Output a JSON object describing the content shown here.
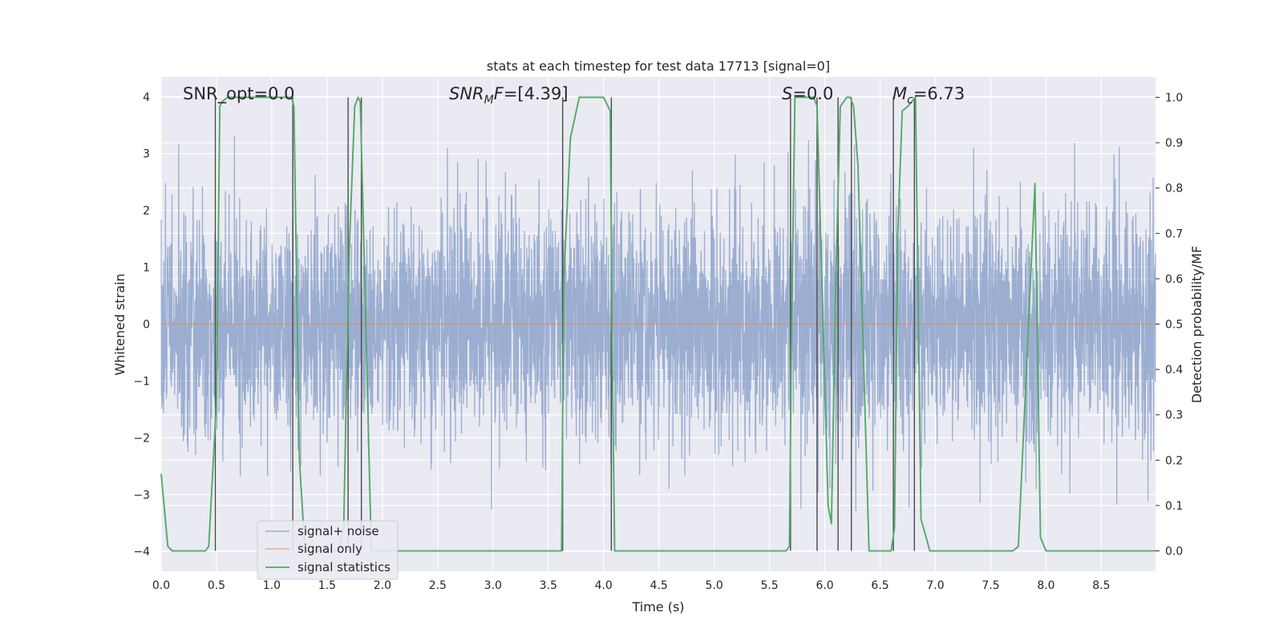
{
  "chart_data": {
    "type": "line",
    "title": "stats at each timestep for test data 17713 [signal=0]",
    "xlabel": "Time (s)",
    "ylabel": "Whitened strain",
    "y2label": "Detection probability/MF",
    "xlim": [
      0.0,
      8.99
    ],
    "ylim": [
      -4.35,
      4.35
    ],
    "y2lim": [
      -0.045,
      1.045
    ],
    "x_ticks": [
      "0.0",
      "0.5",
      "1.0",
      "1.5",
      "2.0",
      "2.5",
      "3.0",
      "3.5",
      "4.0",
      "4.5",
      "5.0",
      "5.5",
      "6.0",
      "6.5",
      "7.0",
      "7.5",
      "8.0",
      "8.5"
    ],
    "y_ticks": [
      "−4",
      "−3",
      "−2",
      "−1",
      "0",
      "1",
      "2",
      "3",
      "4"
    ],
    "y2_ticks": [
      "0.0",
      "0.1",
      "0.2",
      "0.3",
      "0.4",
      "0.5",
      "0.6",
      "0.7",
      "0.8",
      "0.9",
      "1.0"
    ],
    "grid": true,
    "legend_position": "lower-left",
    "legend": [
      "signal+ noise",
      "signal only",
      "signal statistics"
    ],
    "annotations": {
      "snr_opt": "SNR_opt=0.0",
      "snr_mf_base": "SNR",
      "snr_mf_sub": "M",
      "snr_mf_suffix": "F",
      "snr_mf_value": "=[4.39]",
      "s_symbol": "S",
      "s_value": "=0.0",
      "mc_base": "M",
      "mc_sub": "c",
      "mc_value": "=6.73"
    },
    "series": [
      {
        "name": "signal+ noise",
        "color": "#4c72b0",
        "kind": "noise",
        "axis": "left",
        "t_range": [
          0.0,
          8.99
        ],
        "sigma": 1.0,
        "envelope": 4.0
      },
      {
        "name": "signal only",
        "color": "#dd8452",
        "axis": "left",
        "x": [
          0.0,
          8.99
        ],
        "y": [
          0.0,
          0.0
        ]
      },
      {
        "name": "signal statistics",
        "color": "#55a868",
        "axis": "right",
        "x": [
          0.0,
          0.06,
          0.1,
          0.2,
          0.3,
          0.4,
          0.43,
          0.5,
          0.53,
          0.55,
          0.6,
          0.7,
          0.8,
          0.9,
          1.0,
          1.1,
          1.18,
          1.2,
          1.25,
          1.3,
          1.5,
          1.6,
          1.65,
          1.7,
          1.75,
          1.78,
          1.8,
          1.82,
          1.9,
          2.0,
          2.5,
          3.0,
          3.5,
          3.62,
          3.64,
          3.7,
          3.78,
          3.9,
          4.0,
          4.06,
          4.08,
          4.1,
          4.2,
          4.3,
          4.4,
          4.5,
          5.0,
          5.5,
          5.65,
          5.68,
          5.7,
          5.73,
          5.9,
          5.93,
          6.03,
          6.06,
          6.1,
          6.14,
          6.2,
          6.23,
          6.26,
          6.3,
          6.4,
          6.5,
          6.6,
          6.63,
          6.66,
          6.7,
          6.75,
          6.82,
          6.87,
          6.95,
          7.0,
          7.3,
          7.5,
          7.7,
          7.75,
          7.9,
          7.95,
          8.0,
          8.2,
          8.5,
          8.99
        ],
        "y": [
          0.17,
          0.01,
          0.0,
          0.0,
          0.0,
          0.0,
          0.01,
          0.33,
          0.98,
          0.99,
          1.0,
          1.0,
          1.0,
          1.0,
          1.0,
          1.0,
          1.0,
          0.98,
          0.2,
          0.0,
          0.0,
          0.0,
          0.05,
          0.66,
          0.98,
          1.0,
          0.99,
          0.8,
          0.0,
          0.0,
          0.0,
          0.0,
          0.0,
          0.0,
          0.6,
          0.91,
          1.0,
          1.0,
          1.0,
          0.97,
          0.4,
          0.0,
          0.0,
          0.0,
          0.0,
          0.0,
          0.0,
          0.0,
          0.0,
          0.01,
          0.5,
          1.0,
          1.0,
          0.98,
          0.1,
          0.06,
          0.6,
          0.98,
          1.0,
          1.0,
          0.98,
          0.85,
          0.0,
          0.0,
          0.0,
          0.05,
          0.7,
          0.97,
          0.98,
          1.0,
          0.07,
          0.0,
          0.0,
          0.0,
          0.0,
          0.0,
          0.01,
          0.81,
          0.03,
          0.0,
          0.0,
          0.0,
          0.0
        ]
      }
    ],
    "markers": [
      0.49,
      1.19,
      1.69,
      1.81,
      3.63,
      4.07,
      5.69,
      5.93,
      6.12,
      6.24,
      6.62,
      6.81
    ]
  }
}
